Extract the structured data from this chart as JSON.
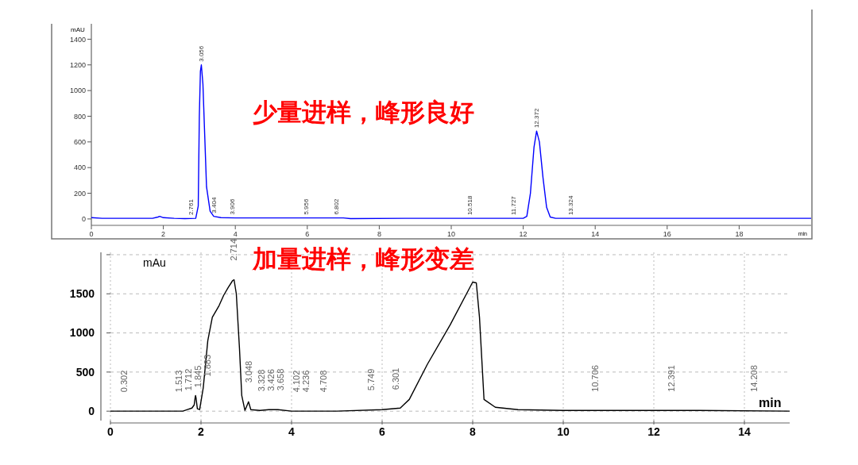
{
  "chart_data": [
    {
      "type": "line",
      "title": "少量进样，峰形良好",
      "xlabel": "min",
      "ylabel": "mAU",
      "xlim": [
        0,
        20
      ],
      "ylim": [
        -50,
        1520
      ],
      "xticks": [
        0,
        2,
        4,
        6,
        8,
        10,
        12,
        14,
        16,
        18
      ],
      "yticks": [
        0,
        200,
        400,
        600,
        800,
        1000,
        1200,
        1400
      ],
      "grid": false,
      "series": [
        {
          "color": "#0000ff",
          "x": [
            0,
            0.3,
            1.7,
            1.85,
            1.9,
            2.0,
            2.3,
            2.6,
            2.9,
            2.97,
            3.0,
            3.03,
            3.056,
            3.1,
            3.15,
            3.2,
            3.3,
            3.4,
            3.6,
            4.0,
            7.0,
            7.2,
            9.0,
            10.0,
            11.5,
            12.0,
            12.1,
            12.2,
            12.3,
            12.372,
            12.45,
            12.55,
            12.65,
            12.75,
            12.9,
            14.0,
            14.2,
            20.0
          ],
          "values": [
            10,
            5,
            5,
            15,
            20,
            10,
            5,
            3,
            5,
            100,
            800,
            1150,
            1200,
            1050,
            650,
            250,
            60,
            20,
            10,
            8,
            8,
            3,
            5,
            5,
            5,
            5,
            20,
            200,
            560,
            685,
            600,
            320,
            90,
            15,
            5,
            5,
            5,
            5
          ]
        }
      ],
      "annotations": [
        {
          "text": "2.761",
          "x": 2.761,
          "y": 5
        },
        {
          "text": "3.056",
          "x": 3.056,
          "y": 1200
        },
        {
          "text": "3.404",
          "x": 3.404,
          "y": 20
        },
        {
          "text": "3.906",
          "x": 3.906,
          "y": 8
        },
        {
          "text": "5.956",
          "x": 5.956,
          "y": 8
        },
        {
          "text": "6.802",
          "x": 6.802,
          "y": 8
        },
        {
          "text": "10.518",
          "x": 10.518,
          "y": 5
        },
        {
          "text": "11.727",
          "x": 11.727,
          "y": 5
        },
        {
          "text": "12.372",
          "x": 12.372,
          "y": 685
        },
        {
          "text": "13.324",
          "x": 13.324,
          "y": 5
        }
      ]
    },
    {
      "type": "line",
      "title": "加量进样，峰形变差",
      "xlabel": "min",
      "ylabel": "mAu",
      "xlim": [
        0,
        15
      ],
      "ylim": [
        -120,
        2030
      ],
      "xticks": [
        0,
        2,
        4,
        6,
        8,
        10,
        12,
        14
      ],
      "yticks": [
        0,
        500,
        1000,
        1500,
        {
          "value": 2000,
          "label": null
        }
      ],
      "grid": true,
      "series": [
        {
          "color": "#000000",
          "x": [
            0,
            1.6,
            1.7,
            1.8,
            1.85,
            1.87,
            1.88,
            1.89,
            1.92,
            1.97,
            2.05,
            2.15,
            2.25,
            2.4,
            2.5,
            2.6,
            2.7,
            2.73,
            2.78,
            2.85,
            2.9,
            2.97,
            3.05,
            3.1,
            3.3,
            3.5,
            3.7,
            4.0,
            5.0,
            6.0,
            6.4,
            6.6,
            7.0,
            7.5,
            8.0,
            8.08,
            8.15,
            8.25,
            8.5,
            9.0,
            10.0,
            13.0,
            15.0
          ],
          "values": [
            0,
            0,
            20,
            40,
            80,
            170,
            200,
            170,
            30,
            20,
            300,
            900,
            1200,
            1350,
            1480,
            1580,
            1670,
            1680,
            1500,
            800,
            200,
            10,
            120,
            20,
            10,
            20,
            20,
            0,
            0,
            20,
            40,
            150,
            600,
            1100,
            1650,
            1640,
            1200,
            150,
            50,
            20,
            10,
            10,
            0
          ]
        }
      ],
      "annotations": [
        {
          "text": "0.302",
          "x": 0.302,
          "y": 0
        },
        {
          "text": "1.513",
          "x": 1.513,
          "y": 0
        },
        {
          "text": "1.712",
          "x": 1.712,
          "y": 20
        },
        {
          "text": "1.845",
          "x": 1.845,
          "y": 60
        },
        {
          "text": "1.883",
          "x": 1.883,
          "y": 200
        },
        {
          "text": "2.714",
          "x": 2.714,
          "y": 1680
        },
        {
          "text": "3.048",
          "x": 3.048,
          "y": 120
        },
        {
          "text": "3.328",
          "x": 3.328,
          "y": 10
        },
        {
          "text": "3.426",
          "x": 3.426,
          "y": 15
        },
        {
          "text": "3.658",
          "x": 3.658,
          "y": 20
        },
        {
          "text": "4.102",
          "x": 4.102,
          "y": 0
        },
        {
          "text": "4.236",
          "x": 4.236,
          "y": 0
        },
        {
          "text": "4.708",
          "x": 4.708,
          "y": 0
        },
        {
          "text": "5.749",
          "x": 5.749,
          "y": 20
        },
        {
          "text": "6.301",
          "x": 6.301,
          "y": 30
        },
        {
          "text": "10.706",
          "x": 10.706,
          "y": 5
        },
        {
          "text": "12.391",
          "x": 12.391,
          "y": 5
        },
        {
          "text": "14.208",
          "x": 14.208,
          "y": 3
        }
      ]
    }
  ]
}
